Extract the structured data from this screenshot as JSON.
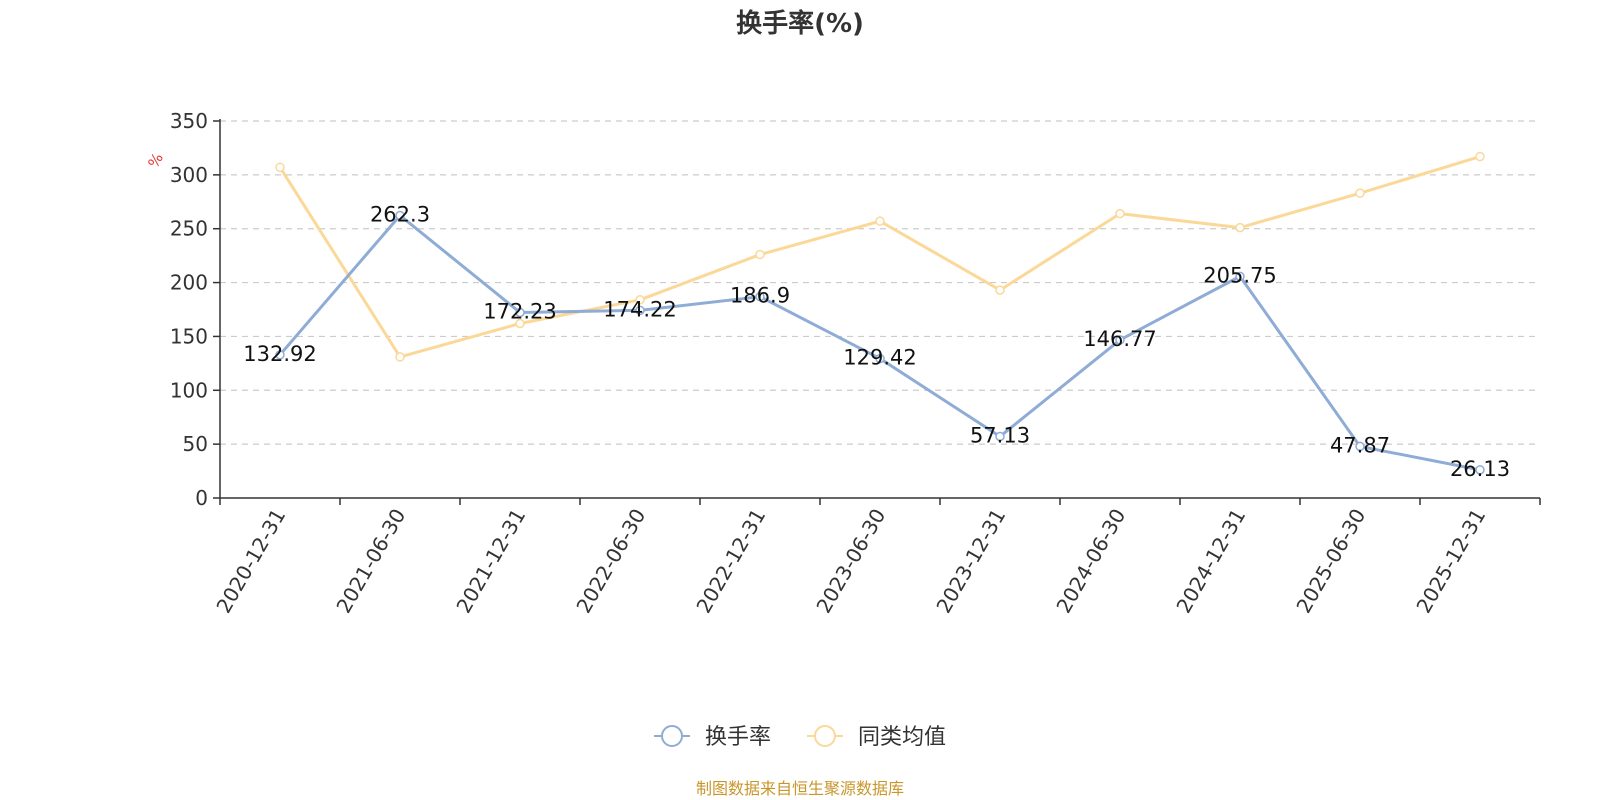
{
  "chart_data": {
    "type": "line",
    "title": "换手率(%)",
    "ylabel": "%",
    "xlabel": "",
    "ylim": [
      0,
      350
    ],
    "yticks": [
      0,
      50,
      100,
      150,
      200,
      250,
      300,
      350
    ],
    "grid": true,
    "legend_position": "bottom-center",
    "categories": [
      "2020-12-31",
      "2021-06-30",
      "2021-12-31",
      "2022-06-30",
      "2022-12-31",
      "2023-06-30",
      "2023-12-31",
      "2024-06-30",
      "2024-12-31",
      "2025-06-30",
      "2025-12-31"
    ],
    "series": [
      {
        "name": "换手率",
        "color": "#8eacd6",
        "values": [
          132.92,
          262.3,
          172.23,
          174.22,
          186.9,
          129.42,
          57.13,
          146.77,
          205.75,
          47.87,
          26.13
        ],
        "data_labels": [
          "132.92",
          "262.3",
          "172.23",
          "174.22",
          "186.9",
          "129.42",
          "57.13",
          "146.77",
          "205.75",
          "47.87",
          "26.13"
        ]
      },
      {
        "name": "同类均值",
        "color": "#fbd898",
        "values": [
          307,
          131,
          162,
          184,
          226,
          257,
          193,
          264,
          251,
          283,
          317
        ]
      }
    ]
  },
  "footer": {
    "source": "制图数据来自恒生聚源数据库",
    "source_color": "#c9962b"
  }
}
